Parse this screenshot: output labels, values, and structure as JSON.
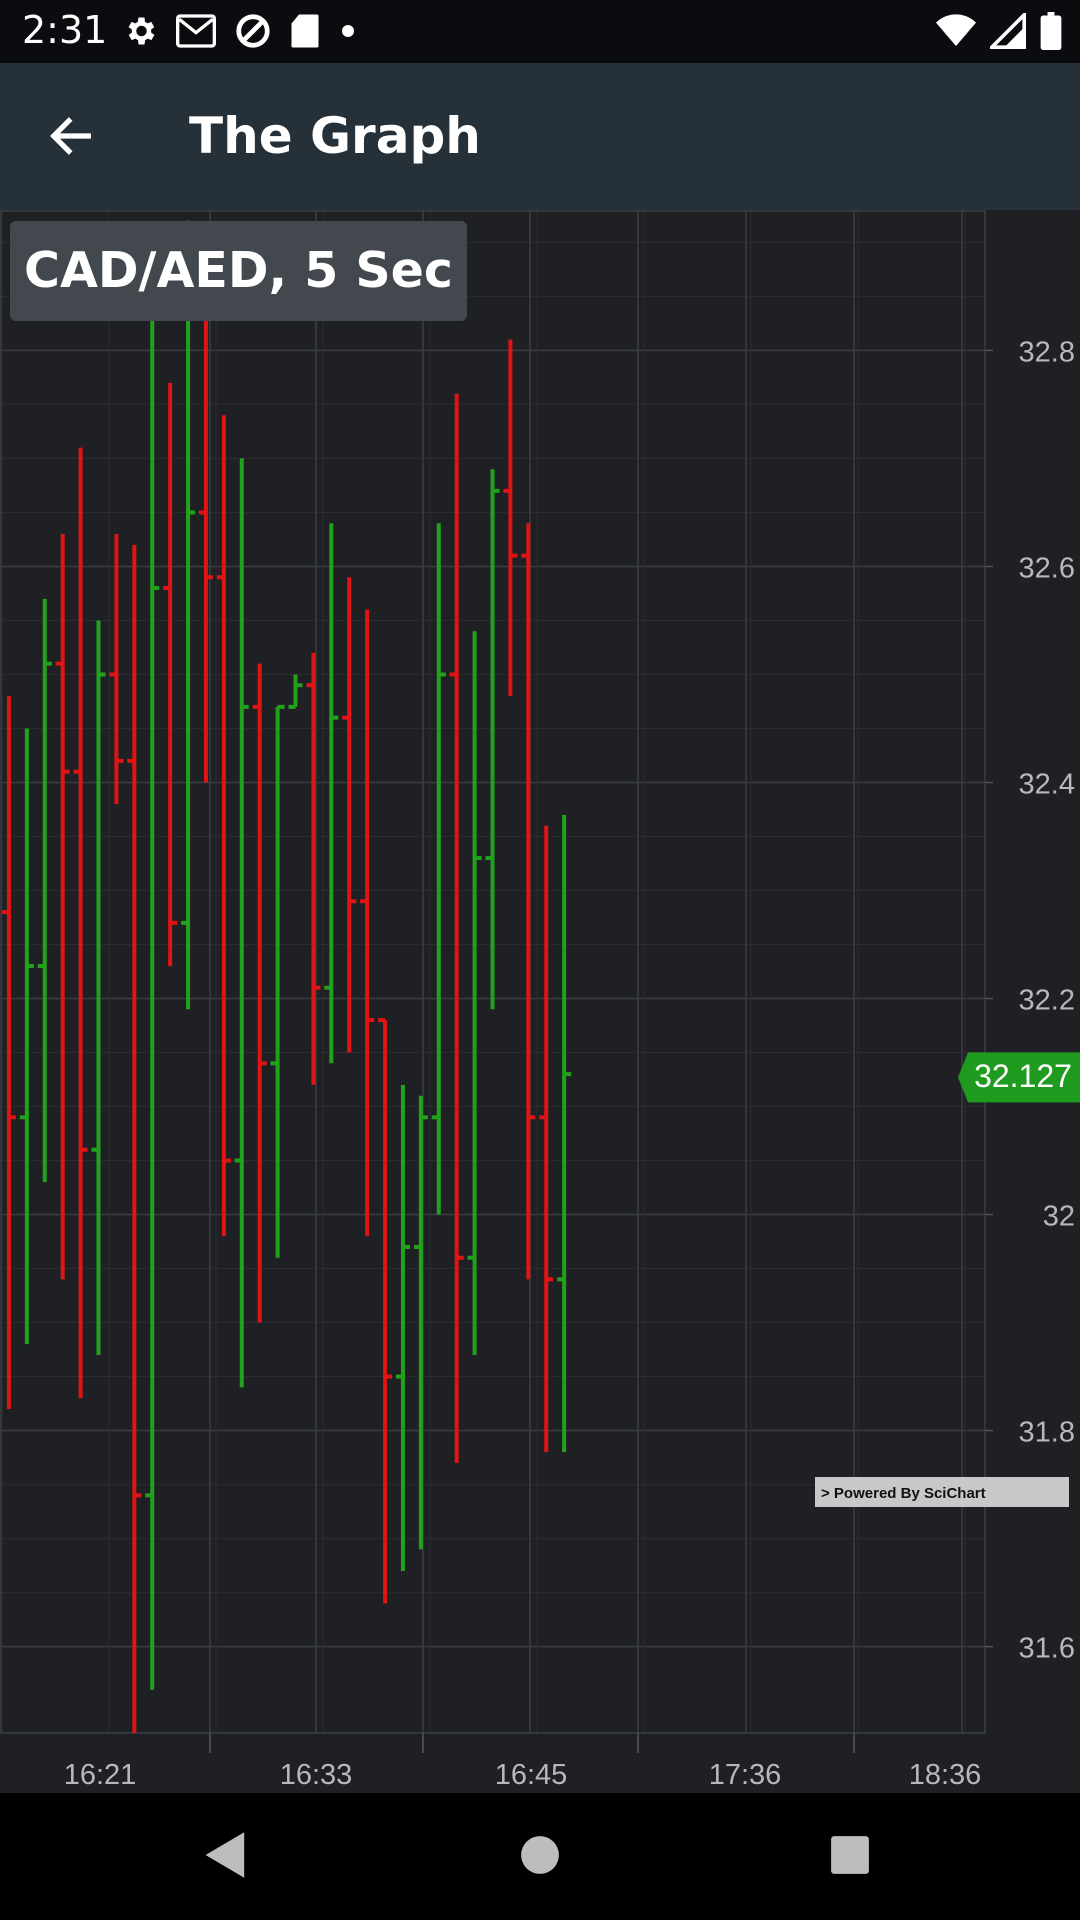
{
  "status_bar": {
    "time": "2:31",
    "left_icons": [
      "gear-icon",
      "gmail-icon",
      "data-saver-icon",
      "sd-card-icon",
      "dot-icon"
    ],
    "right_icons": [
      "wifi-icon",
      "cell-signal-icon",
      "battery-icon"
    ]
  },
  "app_bar": {
    "title": "The Graph",
    "back_icon": "arrow-back-icon"
  },
  "chart": {
    "title_box": "CAD/AED, 5 Sec",
    "current_price_label": "32.127",
    "watermark": "> Powered By SciChart",
    "colors": {
      "up": "#22a21c",
      "down": "#e01414",
      "price_marker": "#1f9c1f",
      "background": "#1f2024",
      "grid": "#3a3d42",
      "tick_text": "#b8b8b8"
    }
  },
  "chart_data": {
    "type": "ohlc",
    "x_tick_labels": [
      "16:21",
      "16:33",
      "16:45",
      "17:36",
      "18:36"
    ],
    "y_tick_labels": [
      "32.8",
      "32.6",
      "32.4",
      "32.2",
      "32",
      "31.8",
      "31.6"
    ],
    "y_ticks": [
      32.8,
      32.6,
      32.4,
      32.2,
      32.0,
      31.8,
      31.6
    ],
    "ylim": [
      31.52,
      32.93
    ],
    "x_bar_index_range": [
      -0.5,
      54.5
    ],
    "current_price": 32.127,
    "bars": [
      {
        "i": 0,
        "open": 32.28,
        "high": 32.48,
        "low": 31.82,
        "close": 32.09
      },
      {
        "i": 1,
        "open": 32.09,
        "high": 32.45,
        "low": 31.88,
        "close": 32.23
      },
      {
        "i": 2,
        "open": 32.23,
        "high": 32.57,
        "low": 32.03,
        "close": 32.51
      },
      {
        "i": 3,
        "open": 32.51,
        "high": 32.63,
        "low": 31.94,
        "close": 32.41
      },
      {
        "i": 4,
        "open": 32.41,
        "high": 32.71,
        "low": 31.83,
        "close": 32.06
      },
      {
        "i": 5,
        "open": 32.06,
        "high": 32.55,
        "low": 31.87,
        "close": 32.5
      },
      {
        "i": 6,
        "open": 32.5,
        "high": 32.63,
        "low": 32.38,
        "close": 32.42
      },
      {
        "i": 7,
        "open": 32.42,
        "high": 32.62,
        "low": 31.52,
        "close": 31.74
      },
      {
        "i": 8,
        "open": 31.74,
        "high": 32.84,
        "low": 31.56,
        "close": 32.58
      },
      {
        "i": 9,
        "open": 32.58,
        "high": 32.77,
        "low": 32.23,
        "close": 32.27
      },
      {
        "i": 10,
        "open": 32.27,
        "high": 32.92,
        "low": 32.19,
        "close": 32.65
      },
      {
        "i": 11,
        "open": 32.65,
        "high": 32.84,
        "low": 32.4,
        "close": 32.59
      },
      {
        "i": 12,
        "open": 32.59,
        "high": 32.74,
        "low": 31.98,
        "close": 32.05
      },
      {
        "i": 13,
        "open": 32.05,
        "high": 32.7,
        "low": 31.84,
        "close": 32.47
      },
      {
        "i": 14,
        "open": 32.47,
        "high": 32.51,
        "low": 31.9,
        "close": 32.14
      },
      {
        "i": 15,
        "open": 32.14,
        "high": 32.47,
        "low": 31.96,
        "close": 32.47
      },
      {
        "i": 16,
        "open": 32.47,
        "high": 32.5,
        "low": 32.47,
        "close": 32.49
      },
      {
        "i": 17,
        "open": 32.49,
        "high": 32.52,
        "low": 32.12,
        "close": 32.21
      },
      {
        "i": 18,
        "open": 32.21,
        "high": 32.64,
        "low": 32.14,
        "close": 32.46
      },
      {
        "i": 19,
        "open": 32.46,
        "high": 32.59,
        "low": 32.15,
        "close": 32.29
      },
      {
        "i": 20,
        "open": 32.29,
        "high": 32.56,
        "low": 31.98,
        "close": 32.18
      },
      {
        "i": 21,
        "open": 32.18,
        "high": 32.18,
        "low": 31.64,
        "close": 31.85
      },
      {
        "i": 22,
        "open": 31.85,
        "high": 32.12,
        "low": 31.67,
        "close": 31.97
      },
      {
        "i": 23,
        "open": 31.97,
        "high": 32.11,
        "low": 31.69,
        "close": 32.09
      },
      {
        "i": 24,
        "open": 32.09,
        "high": 32.64,
        "low": 32.0,
        "close": 32.5
      },
      {
        "i": 25,
        "open": 32.5,
        "high": 32.76,
        "low": 31.77,
        "close": 31.96
      },
      {
        "i": 26,
        "open": 31.96,
        "high": 32.54,
        "low": 31.87,
        "close": 32.33
      },
      {
        "i": 27,
        "open": 32.33,
        "high": 32.69,
        "low": 32.19,
        "close": 32.67
      },
      {
        "i": 28,
        "open": 32.67,
        "high": 32.81,
        "low": 32.48,
        "close": 32.61
      },
      {
        "i": 29,
        "open": 32.61,
        "high": 32.64,
        "low": 31.94,
        "close": 32.09
      },
      {
        "i": 30,
        "open": 32.09,
        "high": 32.36,
        "low": 31.78,
        "close": 31.94
      },
      {
        "i": 31,
        "open": 31.94,
        "high": 32.37,
        "low": 31.78,
        "close": 32.13
      }
    ]
  },
  "nav_bar": {
    "icons": [
      "nav-back-icon",
      "nav-home-icon",
      "nav-recents-icon"
    ]
  }
}
